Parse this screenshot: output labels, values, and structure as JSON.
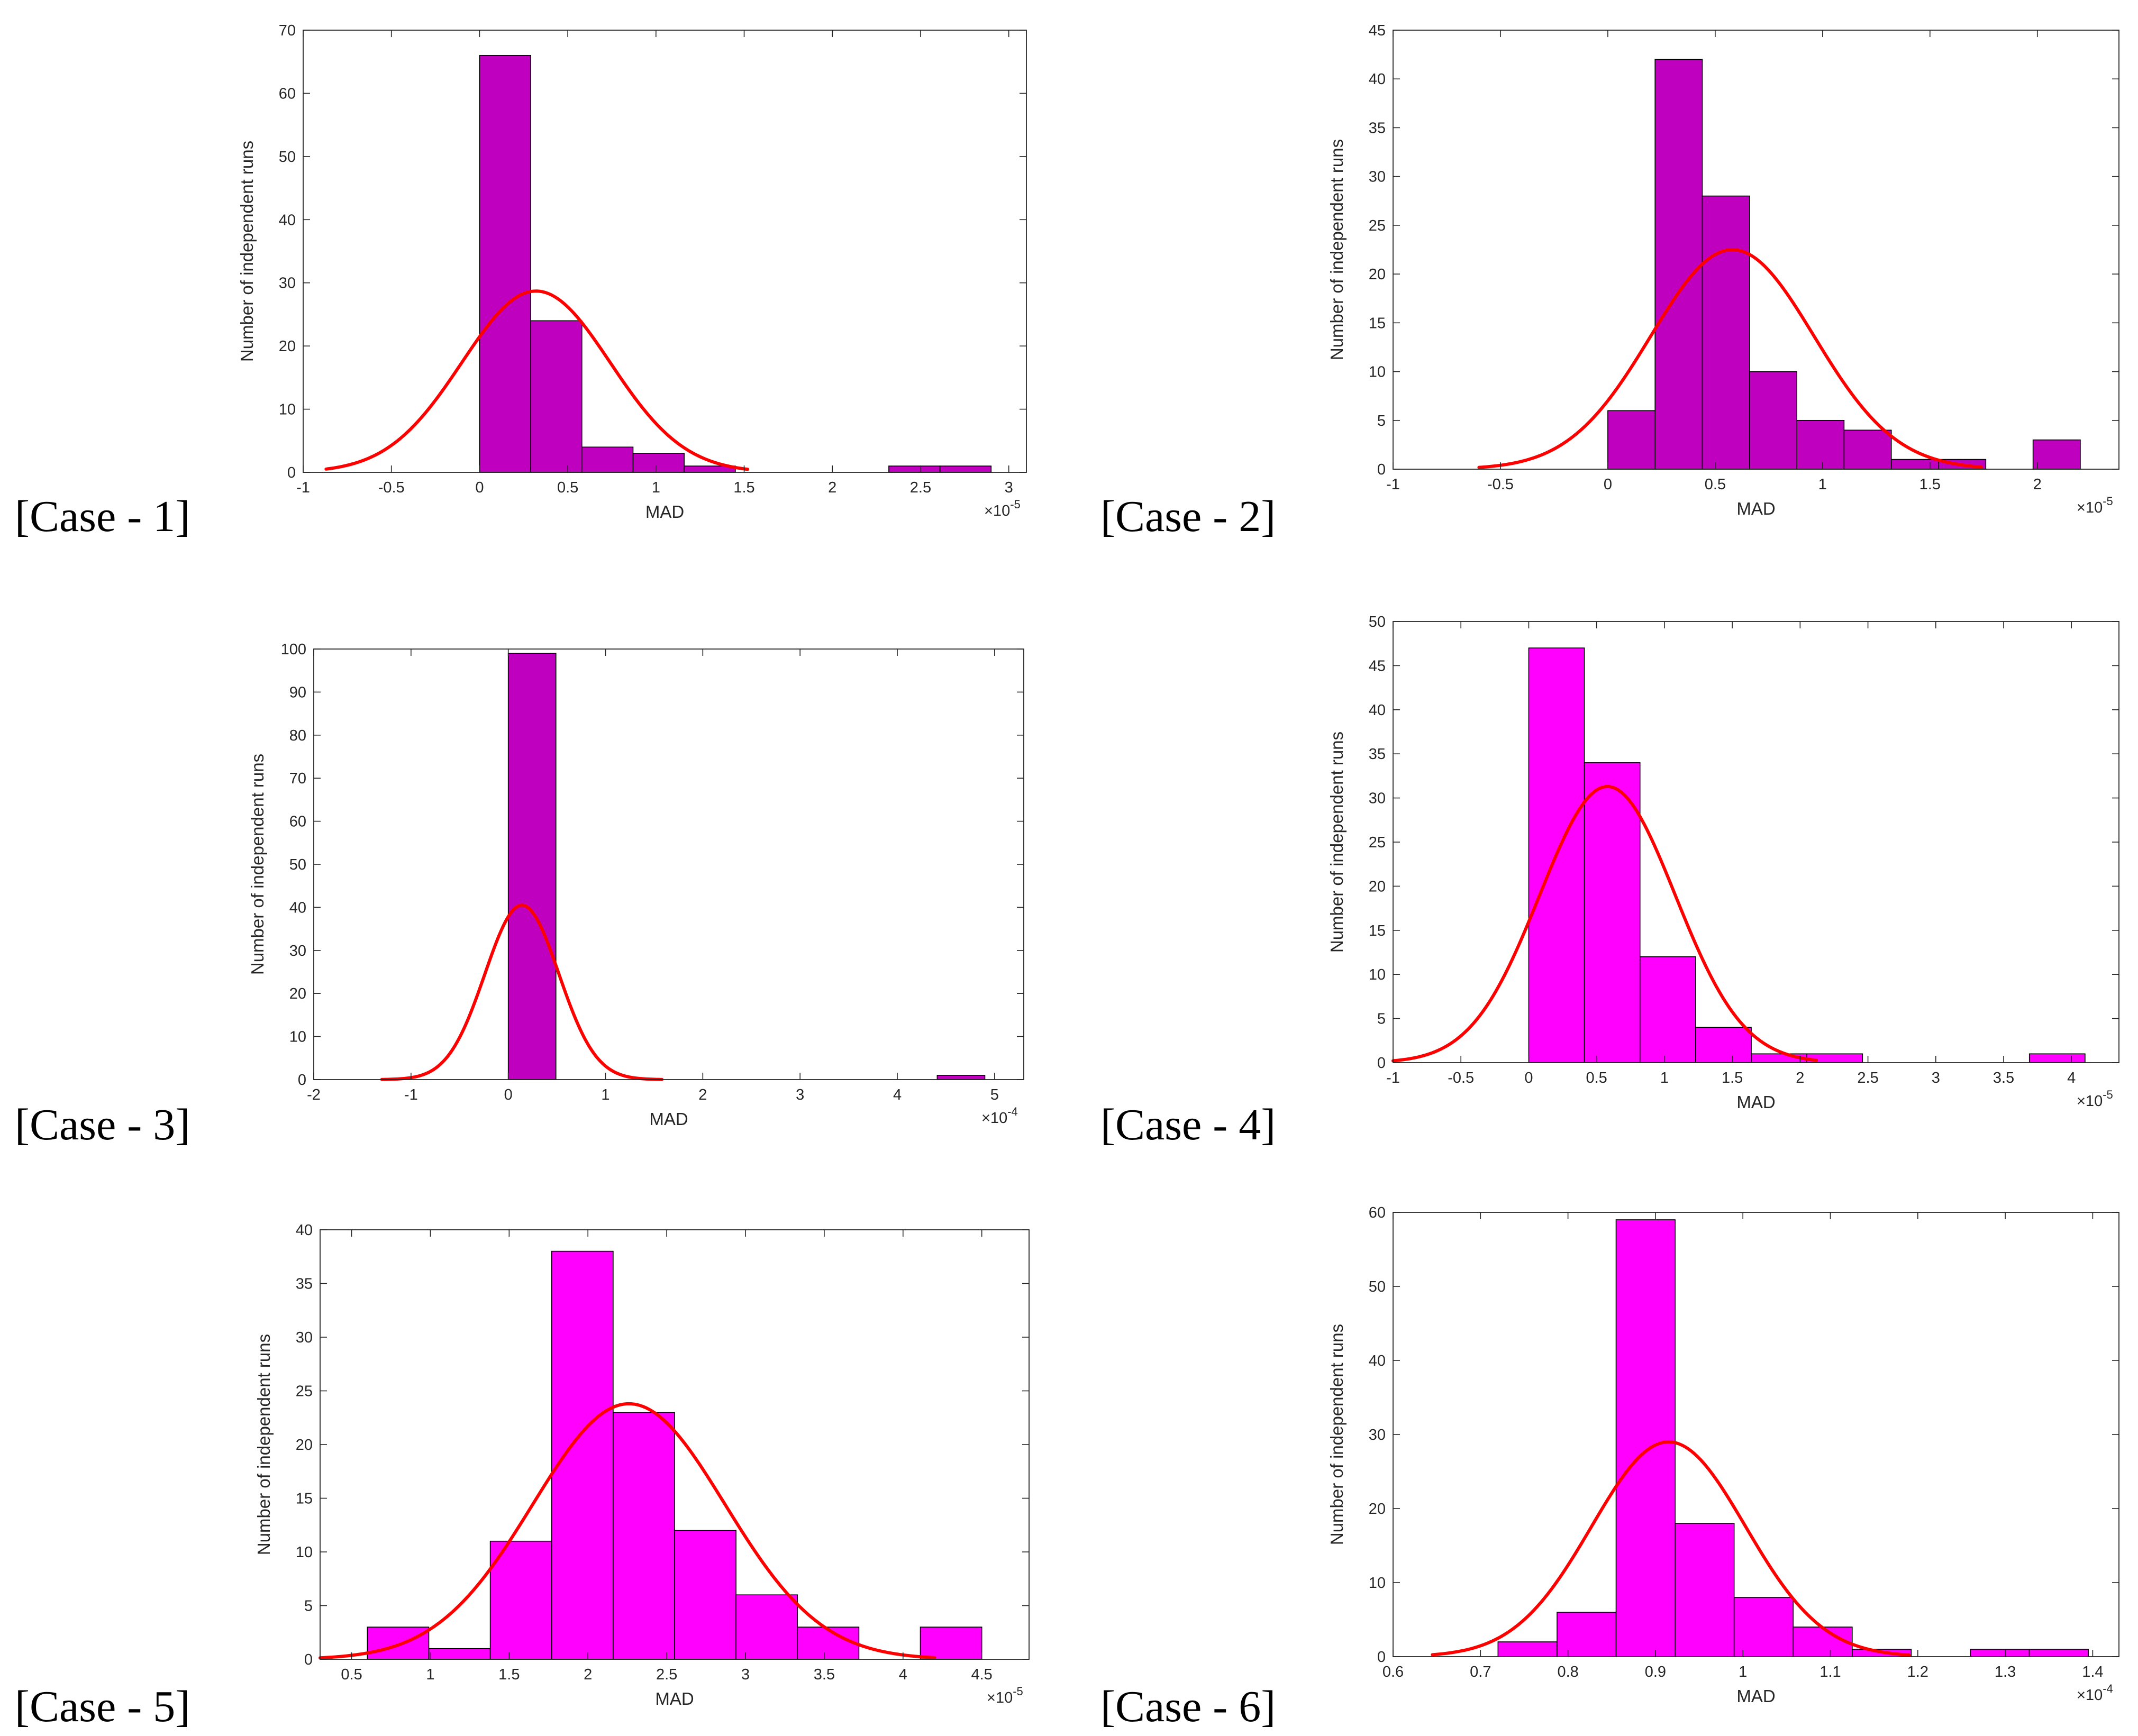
{
  "colors": {
    "dark_magenta": "#bf00bf",
    "magenta": "#ff00ff",
    "fit": "#ff0000",
    "axis": "#262626",
    "edge": "#000000"
  },
  "chart_data": [
    {
      "type": "bar",
      "case_label": "[Case - 1]",
      "xlabel": "MAD",
      "ylabel": "Number of independent runs",
      "exponent_base": "×10",
      "exponent_power": "-5",
      "xlim": [
        -1,
        3.1
      ],
      "ylim": [
        0,
        70
      ],
      "xticks": [
        -1,
        -0.5,
        0,
        0.5,
        1,
        1.5,
        2,
        2.5,
        3
      ],
      "xtick_labels": [
        "-1",
        "-0.5",
        "0",
        "0.5",
        "1",
        "1.5",
        "2",
        "2.5",
        "3"
      ],
      "yticks": [
        0,
        10,
        20,
        30,
        40,
        50,
        60,
        70
      ],
      "ytick_labels": [
        "0",
        "10",
        "20",
        "30",
        "40",
        "50",
        "60",
        "70"
      ],
      "bar_color": "#bf00bf",
      "bins": [
        {
          "x0": 0.0,
          "x1": 0.29,
          "count": 66
        },
        {
          "x0": 0.29,
          "x1": 0.58,
          "count": 24
        },
        {
          "x0": 0.58,
          "x1": 0.87,
          "count": 4
        },
        {
          "x0": 0.87,
          "x1": 1.16,
          "count": 3
        },
        {
          "x0": 1.16,
          "x1": 1.45,
          "count": 1
        },
        {
          "x0": 2.32,
          "x1": 2.61,
          "count": 1
        },
        {
          "x0": 2.61,
          "x1": 2.9,
          "count": 1
        }
      ],
      "fit": {
        "mean": 0.32,
        "sd": 0.42,
        "peak": 28.7,
        "x_from": -0.87,
        "x_to": 1.52
      }
    },
    {
      "type": "bar",
      "case_label": "[Case - 2]",
      "xlabel": "MAD",
      "ylabel": "Number of independent runs",
      "exponent_base": "×10",
      "exponent_power": "-5",
      "xlim": [
        -1,
        2.38
      ],
      "ylim": [
        0,
        45
      ],
      "xticks": [
        -1,
        -0.5,
        0,
        0.5,
        1,
        1.5,
        2
      ],
      "xtick_labels": [
        "-1",
        "-0.5",
        "0",
        "0.5",
        "1",
        "1.5",
        "2"
      ],
      "yticks": [
        0,
        5,
        10,
        15,
        20,
        25,
        30,
        35,
        40,
        45
      ],
      "ytick_labels": [
        "0",
        "5",
        "10",
        "15",
        "20",
        "25",
        "30",
        "35",
        "40",
        "45"
      ],
      "bar_color": "#bf00bf",
      "bins": [
        {
          "x0": 0.0,
          "x1": 0.22,
          "count": 6
        },
        {
          "x0": 0.22,
          "x1": 0.44,
          "count": 42
        },
        {
          "x0": 0.44,
          "x1": 0.66,
          "count": 28
        },
        {
          "x0": 0.66,
          "x1": 0.88,
          "count": 10
        },
        {
          "x0": 0.88,
          "x1": 1.1,
          "count": 5
        },
        {
          "x0": 1.1,
          "x1": 1.32,
          "count": 4
        },
        {
          "x0": 1.32,
          "x1": 1.54,
          "count": 1
        },
        {
          "x0": 1.54,
          "x1": 1.76,
          "count": 1
        },
        {
          "x0": 1.98,
          "x1": 2.2,
          "count": 3
        }
      ],
      "fit": {
        "mean": 0.58,
        "sd": 0.38,
        "peak": 22.5,
        "x_from": -0.6,
        "x_to": 1.74
      }
    },
    {
      "type": "bar",
      "case_label": "[Case - 3]",
      "xlabel": "MAD",
      "ylabel": "Number of independent runs",
      "exponent_base": "×10",
      "exponent_power": "-4",
      "xlim": [
        -2,
        5.3
      ],
      "ylim": [
        0,
        100
      ],
      "xticks": [
        -2,
        -1,
        0,
        1,
        2,
        3,
        4,
        5
      ],
      "xtick_labels": [
        "-2",
        "-1",
        "0",
        "1",
        "2",
        "3",
        "4",
        "5"
      ],
      "yticks": [
        0,
        10,
        20,
        30,
        40,
        50,
        60,
        70,
        80,
        90,
        100
      ],
      "ytick_labels": [
        "0",
        "10",
        "20",
        "30",
        "40",
        "50",
        "60",
        "70",
        "80",
        "90",
        "100"
      ],
      "bar_color": "#bf00bf",
      "bins": [
        {
          "x0": 0.0,
          "x1": 0.49,
          "count": 99
        },
        {
          "x0": 4.41,
          "x1": 4.9,
          "count": 1
        }
      ],
      "fit": {
        "mean": 0.14,
        "sd": 0.38,
        "peak": 40.5,
        "x_from": -1.3,
        "x_to": 1.58
      }
    },
    {
      "type": "bar",
      "case_label": "[Case - 4]",
      "xlabel": "MAD",
      "ylabel": "Number of independent runs",
      "exponent_base": "×10",
      "exponent_power": "-5",
      "xlim": [
        -1,
        4.35
      ],
      "ylim": [
        0,
        50
      ],
      "xticks": [
        -1,
        -0.5,
        0,
        0.5,
        1,
        1.5,
        2,
        2.5,
        3,
        3.5,
        4
      ],
      "xtick_labels": [
        "-1",
        "-0.5",
        "0",
        "0.5",
        "1",
        "1.5",
        "2",
        "2.5",
        "3",
        "3.5",
        "4"
      ],
      "yticks": [
        0,
        5,
        10,
        15,
        20,
        25,
        30,
        35,
        40,
        45,
        50
      ],
      "ytick_labels": [
        "0",
        "5",
        "10",
        "15",
        "20",
        "25",
        "30",
        "35",
        "40",
        "45",
        "50"
      ],
      "bar_color": "#ff00ff",
      "bins": [
        {
          "x0": 0.0,
          "x1": 0.41,
          "count": 47
        },
        {
          "x0": 0.41,
          "x1": 0.82,
          "count": 34
        },
        {
          "x0": 0.82,
          "x1": 1.23,
          "count": 12
        },
        {
          "x0": 1.23,
          "x1": 1.64,
          "count": 4
        },
        {
          "x0": 1.64,
          "x1": 2.05,
          "count": 1
        },
        {
          "x0": 2.05,
          "x1": 2.46,
          "count": 1
        },
        {
          "x0": 3.69,
          "x1": 4.1,
          "count": 1
        }
      ],
      "fit": {
        "mean": 0.58,
        "sd": 0.5,
        "peak": 31.3,
        "x_from": -1.0,
        "x_to": 2.12
      }
    },
    {
      "type": "bar",
      "case_label": "[Case - 5]",
      "xlabel": "MAD",
      "ylabel": "Number of independent runs",
      "exponent_base": "×10",
      "exponent_power": "-5",
      "xlim": [
        0.3,
        4.8
      ],
      "ylim": [
        0,
        40
      ],
      "xticks": [
        0.5,
        1,
        1.5,
        2,
        2.5,
        3,
        3.5,
        4,
        4.5
      ],
      "xtick_labels": [
        "0.5",
        "1",
        "1.5",
        "2",
        "2.5",
        "3",
        "3.5",
        "4",
        "4.5"
      ],
      "yticks": [
        0,
        5,
        10,
        15,
        20,
        25,
        30,
        35,
        40
      ],
      "ytick_labels": [
        "0",
        "5",
        "10",
        "15",
        "20",
        "25",
        "30",
        "35",
        "40"
      ],
      "bar_color": "#ff00ff",
      "bins": [
        {
          "x0": 0.6,
          "x1": 0.99,
          "count": 3
        },
        {
          "x0": 0.99,
          "x1": 1.38,
          "count": 1
        },
        {
          "x0": 1.38,
          "x1": 1.77,
          "count": 11
        },
        {
          "x0": 1.77,
          "x1": 2.16,
          "count": 38
        },
        {
          "x0": 2.16,
          "x1": 2.55,
          "count": 23
        },
        {
          "x0": 2.55,
          "x1": 2.94,
          "count": 12
        },
        {
          "x0": 2.94,
          "x1": 3.33,
          "count": 6
        },
        {
          "x0": 3.33,
          "x1": 3.72,
          "count": 3
        },
        {
          "x0": 4.11,
          "x1": 4.5,
          "count": 3
        }
      ],
      "fit": {
        "mean": 2.26,
        "sd": 0.61,
        "peak": 23.8,
        "x_from": 0.3,
        "x_to": 4.2
      }
    },
    {
      "type": "bar",
      "case_label": "[Case - 6]",
      "xlabel": "MAD",
      "ylabel": "Number of independent runs",
      "exponent_base": "×10",
      "exponent_power": "-4",
      "xlim": [
        0.6,
        1.43
      ],
      "ylim": [
        0,
        60
      ],
      "xticks": [
        0.6,
        0.7,
        0.8,
        0.9,
        1,
        1.1,
        1.2,
        1.3,
        1.4
      ],
      "xtick_labels": [
        "0.6",
        "0.7",
        "0.8",
        "0.9",
        "1",
        "1.1",
        "1.2",
        "1.3",
        "1.4"
      ],
      "yticks": [
        0,
        10,
        20,
        30,
        40,
        50,
        60
      ],
      "ytick_labels": [
        "0",
        "10",
        "20",
        "30",
        "40",
        "50",
        "60"
      ],
      "bar_color": "#ff00ff",
      "bins": [
        {
          "x0": 0.72,
          "x1": 0.7875,
          "count": 2
        },
        {
          "x0": 0.7875,
          "x1": 0.855,
          "count": 6
        },
        {
          "x0": 0.855,
          "x1": 0.9225,
          "count": 59
        },
        {
          "x0": 0.9225,
          "x1": 0.99,
          "count": 18
        },
        {
          "x0": 0.99,
          "x1": 1.0575,
          "count": 8
        },
        {
          "x0": 1.0575,
          "x1": 1.125,
          "count": 4
        },
        {
          "x0": 1.125,
          "x1": 1.1925,
          "count": 1
        },
        {
          "x0": 1.26,
          "x1": 1.3275,
          "count": 1
        },
        {
          "x0": 1.3275,
          "x1": 1.395,
          "count": 1
        }
      ],
      "fit": {
        "mean": 0.915,
        "sd": 0.088,
        "peak": 29.0,
        "x_from": 0.645,
        "x_to": 1.19
      }
    }
  ]
}
